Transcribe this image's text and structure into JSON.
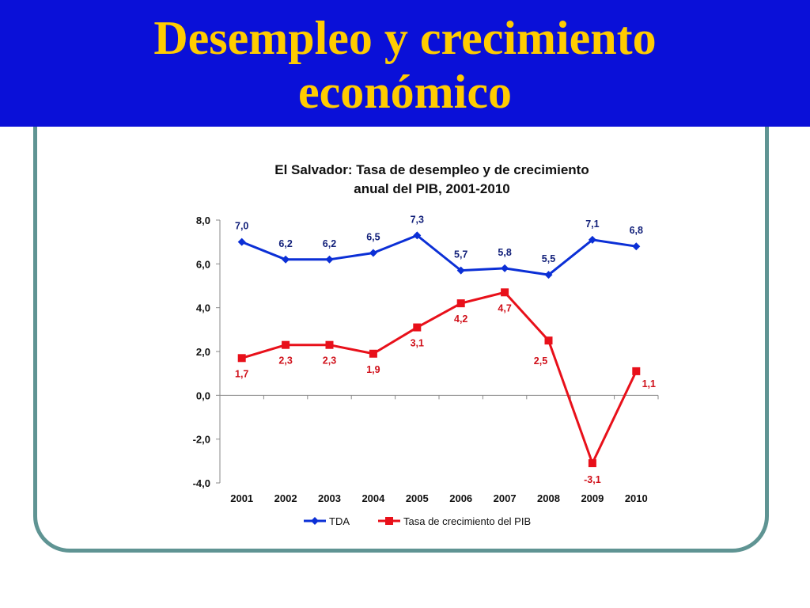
{
  "slide": {
    "title_line1": "Desempleo y crecimiento",
    "title_line2": "económico"
  },
  "colors": {
    "header_bg": "#0a10d8",
    "title_text": "#ffcc00",
    "frame_border": "#5f9493",
    "series_tda": "#0b2fd6",
    "series_pib": "#e8101a"
  },
  "chart_data": {
    "type": "line",
    "title_line1": "El Salvador: Tasa de desempleo y de crecimiento",
    "title_line2": "anual del PIB, 2001-2010",
    "categories": [
      "2001",
      "2002",
      "2003",
      "2004",
      "2005",
      "2006",
      "2007",
      "2008",
      "2009",
      "2010"
    ],
    "ylim": [
      -4,
      8
    ],
    "yticks": [
      -4,
      -2,
      0,
      2,
      4,
      6,
      8
    ],
    "ytick_labels": [
      "-4,0",
      "-2,0",
      "0,0",
      "2,0",
      "4,0",
      "6,0",
      "8,0"
    ],
    "grid": false,
    "legend_position": "bottom",
    "series": [
      {
        "name": "TDA",
        "marker": "diamond",
        "color": "#0b2fd6",
        "values": [
          7.0,
          6.2,
          6.2,
          6.5,
          7.3,
          5.7,
          5.8,
          5.5,
          7.1,
          6.8
        ],
        "labels": [
          "7,0",
          "6,2",
          "6,2",
          "6,5",
          "7,3",
          "5,7",
          "5,8",
          "5,5",
          "7,1",
          "6,8"
        ]
      },
      {
        "name": "Tasa de crecimiento del PIB",
        "marker": "square",
        "color": "#e8101a",
        "values": [
          1.7,
          2.3,
          2.3,
          1.9,
          3.1,
          4.2,
          4.7,
          2.5,
          -3.1,
          1.1
        ],
        "labels": [
          "1,7",
          "2,3",
          "2,3",
          "1,9",
          "3,1",
          "4,2",
          "4,7",
          "2,5",
          "-3,1",
          "1,1"
        ]
      }
    ]
  }
}
